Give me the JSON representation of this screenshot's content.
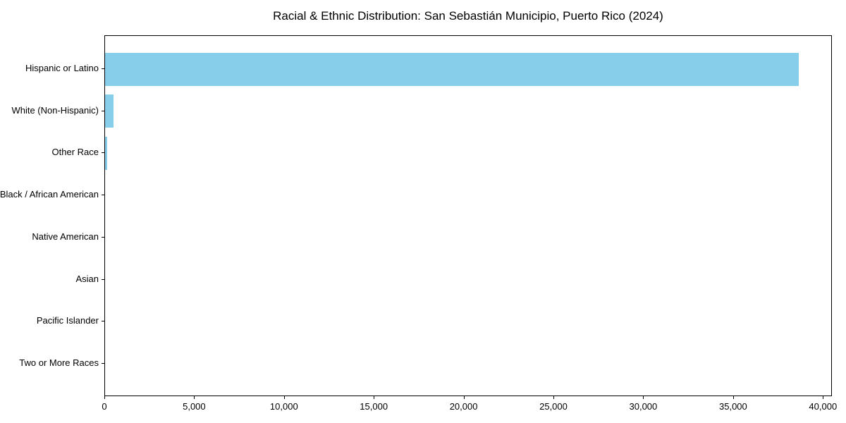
{
  "title": "Racial & Ethnic Distribution: San Sebastián Municipio, Puerto Rico (2024)",
  "colors": {
    "bar": "#87CEEB",
    "axis": "#000000",
    "text": "#000000",
    "background": "#FFFFFF"
  },
  "chart_data": {
    "type": "bar",
    "orientation": "horizontal",
    "title": "Racial & Ethnic Distribution: San Sebastián Municipio, Puerto Rico (2024)",
    "categories": [
      "Hispanic or Latino",
      "White (Non-Hispanic)",
      "Other Race",
      "Black / African American",
      "Native American",
      "Asian",
      "Pacific Islander",
      "Two or More Races"
    ],
    "values": [
      38600,
      470,
      120,
      0,
      0,
      0,
      0,
      0
    ],
    "xlabel": "",
    "ylabel": "",
    "xlim": [
      0,
      40500
    ],
    "xticks": [
      0,
      5000,
      10000,
      15000,
      20000,
      25000,
      30000,
      35000,
      40000
    ],
    "xtick_labels": [
      "0",
      "5,000",
      "10,000",
      "15,000",
      "20,000",
      "25,000",
      "30,000",
      "35,000",
      "40,000"
    ],
    "grid": false,
    "legend": null,
    "bar_color": "#87CEEB"
  }
}
